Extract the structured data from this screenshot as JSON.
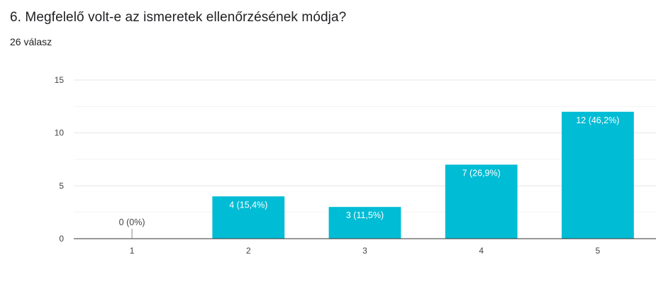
{
  "question": {
    "title": "6. Megfelelő volt-e az ismeretek ellenőrzésének módja?",
    "response_count": "26 válasz"
  },
  "colors": {
    "bar": "#00BCD4",
    "grid": "#E6E6E6",
    "axis": "#333333",
    "label_inside": "#FFFFFF",
    "label_outside": "#444444"
  },
  "chart_data": {
    "type": "bar",
    "categories": [
      "1",
      "2",
      "3",
      "4",
      "5"
    ],
    "values": [
      0,
      4,
      3,
      7,
      12
    ],
    "data_labels": [
      "0 (0%)",
      "4 (15,4%)",
      "3 (11,5%)",
      "7 (26,9%)",
      "12 (46,2%)"
    ],
    "ylim": [
      0,
      15
    ],
    "yticks": [
      0,
      5,
      10,
      15
    ],
    "grid": true,
    "legend": "none",
    "title": "",
    "xlabel": "",
    "ylabel": ""
  }
}
